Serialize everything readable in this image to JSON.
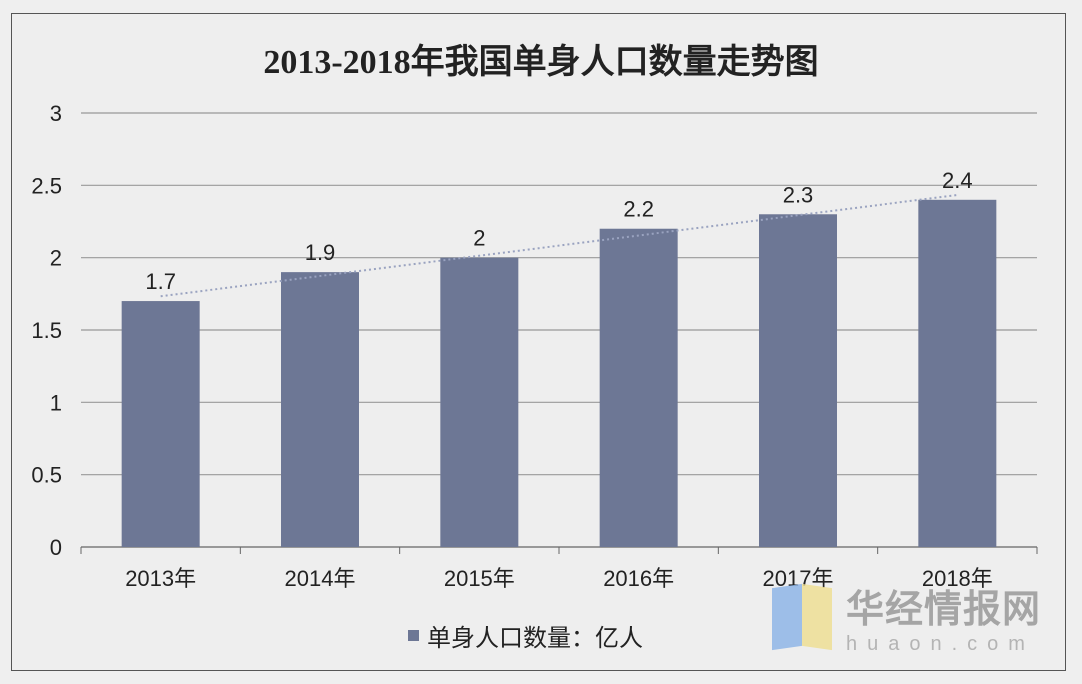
{
  "chart_data": {
    "type": "bar",
    "title": "2013-2018年我国单身人口数量走势图",
    "categories": [
      "2013年",
      "2014年",
      "2015年",
      "2016年",
      "2017年",
      "2018年"
    ],
    "series": [
      {
        "name": "单身人口数量：亿人",
        "values": [
          1.7,
          1.9,
          2,
          2.2,
          2.3,
          2.4
        ],
        "color": "#6d7795"
      }
    ],
    "data_labels": [
      "1.7",
      "1.9",
      "2",
      "2.2",
      "2.3",
      "2.4"
    ],
    "ylim": [
      0,
      3
    ],
    "yticks": [
      "0",
      "0.5",
      "1",
      "1.5",
      "2",
      "2.5",
      "3"
    ],
    "grid": true,
    "trendline": "linear, dotted",
    "legend": "bottom"
  },
  "watermark": {
    "cn": "华经情报网",
    "en": "huaon.com"
  }
}
